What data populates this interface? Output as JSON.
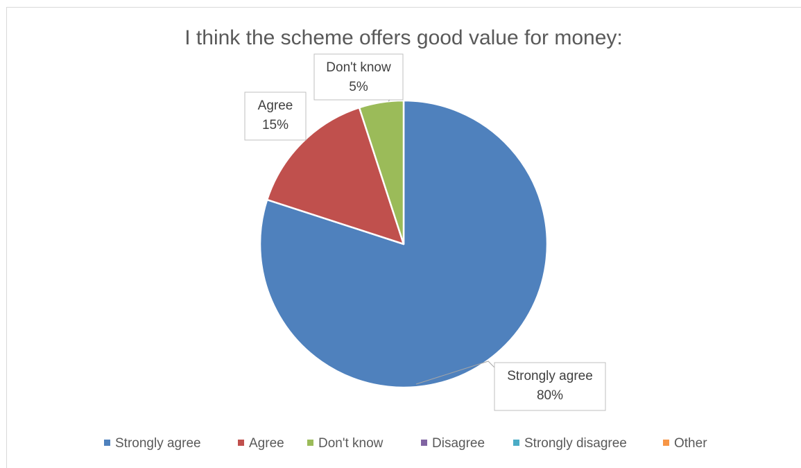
{
  "chart_data": {
    "type": "pie",
    "title": "I think the scheme offers good value for money:",
    "categories": [
      "Strongly agree",
      "Agree",
      "Don't know",
      "Disagree",
      "Strongly disagree",
      "Other"
    ],
    "values": [
      80,
      15,
      5,
      0,
      0,
      0
    ],
    "unit": "%",
    "colors": [
      "#4f81bd",
      "#c0504d",
      "#9bbb59",
      "#8064a2",
      "#4bacc6",
      "#f79646"
    ],
    "data_labels": [
      {
        "name": "Strongly agree",
        "value": "80%"
      },
      {
        "name": "Agree",
        "value": "15%"
      },
      {
        "name": "Don't know",
        "value": "5%"
      }
    ],
    "legend_position": "bottom",
    "start_angle": "12 o'clock",
    "direction": "clockwise"
  }
}
